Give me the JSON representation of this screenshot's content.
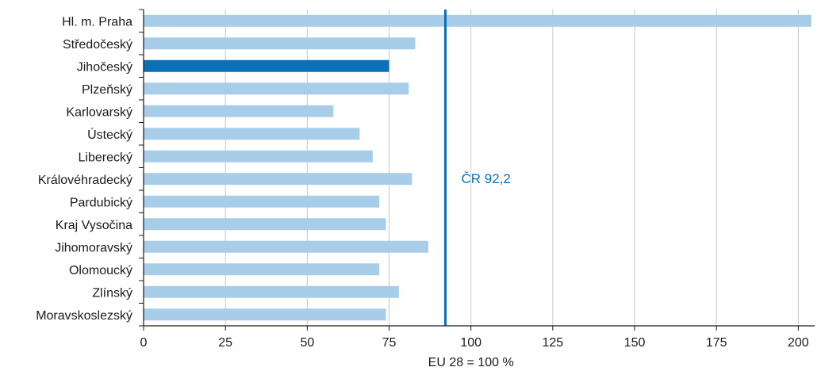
{
  "chart_data": {
    "type": "bar",
    "orientation": "horizontal",
    "categories": [
      "Hl. m. Praha",
      "Středočeský",
      "Jihočeský",
      "Plzeňský",
      "Karlovarský",
      "Ústecký",
      "Liberecký",
      "Královéhradecký",
      "Pardubický",
      "Kraj Vysočina",
      "Jihomoravský",
      "Olomoucký",
      "Zlínský",
      "Moravskoslezský"
    ],
    "values": [
      204,
      83,
      75,
      81,
      58,
      66,
      70,
      82,
      72,
      74,
      87,
      72,
      78,
      74
    ],
    "highlight_index": 2,
    "xlabel": "EU 28 = 100 %",
    "xlim": [
      0,
      205
    ],
    "xticks": [
      0,
      25,
      50,
      75,
      100,
      125,
      150,
      175,
      200
    ],
    "grid": "vertical",
    "reference_line": {
      "value": 92.2,
      "label": "ČR 92,2"
    },
    "colors": {
      "bar": "#a8cde9",
      "highlight": "#0a70b8",
      "reference": "#0a70b8",
      "grid": "#c8c8c8",
      "axis": "#1a1a1a"
    }
  }
}
